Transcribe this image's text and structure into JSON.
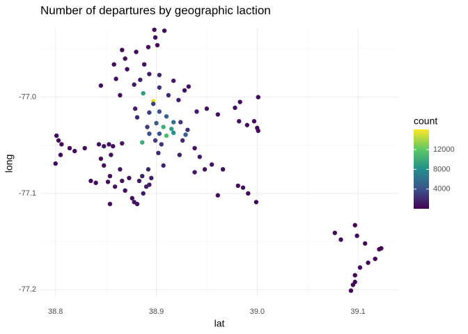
{
  "chart_data": {
    "type": "scatter",
    "title": "Number of departures by geographic laction",
    "x_label": "lat",
    "y_label": "long",
    "color_label": "count",
    "colorscale": [
      "#440154",
      "#3b528b",
      "#21908c",
      "#5dc863",
      "#fde725"
    ],
    "clim": [
      0,
      16100
    ],
    "cticks": [
      4000,
      8000,
      12000
    ],
    "xlim": [
      38.785,
      39.14
    ],
    "xticks": [
      38.8,
      38.9,
      {
        "value": 39.0,
        "label": "39.0"
      },
      39.1
    ],
    "ylim": [
      -77.207,
      -76.928
    ],
    "yticks": [
      {
        "value": -77.0,
        "label": "-77.0"
      },
      -77.1,
      -77.2
    ],
    "grid": true,
    "x": [
      38.898,
      38.908,
      38.899,
      38.892,
      38.901,
      38.866,
      38.88,
      38.858,
      38.869,
      38.871,
      38.888,
      38.845,
      38.86,
      38.878,
      38.864,
      38.884,
      38.893,
      38.903,
      38.917,
      38.928,
      38.932,
      38.922,
      38.912,
      38.903,
      38.94,
      38.95,
      38.961,
      38.978,
      38.983,
      39.001,
      38.982,
      38.99,
      38.997,
      39.0,
      39.001,
      38.897,
      38.887,
      38.897,
      38.893,
      38.903,
      38.91,
      38.907,
      38.915,
      38.917,
      38.91,
      38.903,
      38.899,
      38.905,
      38.902,
      38.907,
      38.886,
      38.891,
      38.881,
      38.879,
      38.924,
      38.931,
      38.926,
      38.938,
      38.929,
      38.917,
      38.9,
      38.893,
      38.801,
      38.803,
      38.806,
      38.8,
      38.805,
      38.814,
      38.819,
      38.829,
      38.843,
      38.848,
      38.853,
      38.857,
      38.866,
      38.855,
      38.845,
      38.848,
      38.854,
      38.835,
      38.84,
      38.852,
      38.859,
      38.866,
      38.864,
      38.869,
      38.876,
      38.881,
      38.887,
      38.89,
      38.886,
      38.892,
      38.895,
      38.883,
      38.873,
      38.854,
      38.893,
      38.878,
      38.943,
      38.948,
      38.955,
      38.966,
      38.961,
      38.981,
      38.986,
      38.991,
      38.999,
      38.938,
      38.923,
      39.077,
      39.083,
      39.097,
      39.099,
      39.107,
      39.121,
      39.123,
      39.117,
      39.11,
      39.102,
      39.097,
      39.097,
      39.095,
      39.093
    ],
    "y": [
      -76.93,
      -76.931,
      -76.938,
      -76.948,
      -76.946,
      -76.951,
      -76.953,
      -76.966,
      -76.96,
      -76.971,
      -76.966,
      -76.988,
      -76.981,
      -76.987,
      -76.998,
      -76.982,
      -76.976,
      -76.977,
      -76.983,
      -76.993,
      -76.989,
      -77.003,
      -76.998,
      -76.99,
      -77.015,
      -77.012,
      -77.018,
      -77.011,
      -77.005,
      -77.0,
      -77.025,
      -77.029,
      -77.025,
      -77.032,
      -77.035,
      -77.004,
      -76.996,
      -77.007,
      -77.016,
      -77.015,
      -77.02,
      -77.031,
      -77.033,
      -77.037,
      -77.04,
      -77.038,
      -77.045,
      -77.049,
      -77.058,
      -77.071,
      -77.047,
      -77.031,
      -77.021,
      -77.012,
      -77.026,
      -77.034,
      -77.045,
      -77.053,
      -77.039,
      -77.026,
      -77.027,
      -77.038,
      -77.04,
      -77.045,
      -77.049,
      -77.069,
      -77.06,
      -77.053,
      -77.056,
      -77.053,
      -77.049,
      -77.051,
      -77.049,
      -77.051,
      -77.048,
      -77.06,
      -77.064,
      -77.071,
      -77.082,
      -77.087,
      -77.089,
      -77.088,
      -77.093,
      -77.087,
      -77.075,
      -77.097,
      -77.105,
      -77.111,
      -77.1,
      -77.093,
      -77.082,
      -77.075,
      -77.084,
      -77.087,
      -77.084,
      -77.111,
      -77.091,
      -77.109,
      -77.062,
      -77.075,
      -77.07,
      -77.075,
      -77.102,
      -77.092,
      -77.094,
      -77.1,
      -77.109,
      -77.078,
      -77.06,
      -77.141,
      -77.148,
      -77.133,
      -77.144,
      -77.152,
      -77.158,
      -77.157,
      -77.168,
      -77.172,
      -77.177,
      -77.185,
      -77.192,
      -77.195,
      -77.201
    ],
    "values": [
      600,
      500,
      500,
      700,
      600,
      400,
      700,
      500,
      600,
      700,
      900,
      500,
      800,
      1200,
      700,
      1500,
      1200,
      1800,
      1500,
      900,
      800,
      1400,
      2000,
      2500,
      1200,
      900,
      700,
      600,
      500,
      400,
      800,
      700,
      600,
      600,
      500,
      15500,
      9000,
      3000,
      3000,
      4000,
      5000,
      10000,
      9000,
      8000,
      11000,
      4000,
      3000,
      2500,
      2000,
      1500,
      10000,
      3000,
      2000,
      1500,
      3000,
      2500,
      2000,
      1000,
      5000,
      6000,
      5000,
      4000,
      500,
      600,
      500,
      400,
      500,
      600,
      500,
      700,
      900,
      1000,
      800,
      700,
      1200,
      800,
      700,
      600,
      700,
      500,
      600,
      700,
      800,
      900,
      1100,
      700,
      600,
      900,
      1300,
      1500,
      1600,
      1800,
      1400,
      1100,
      800,
      600,
      1400,
      700,
      1200,
      900,
      800,
      600,
      500,
      700,
      600,
      500,
      400,
      1000,
      1500,
      400,
      500,
      300,
      400,
      300,
      400,
      300,
      400,
      300,
      400,
      300,
      300,
      300,
      300
    ]
  }
}
